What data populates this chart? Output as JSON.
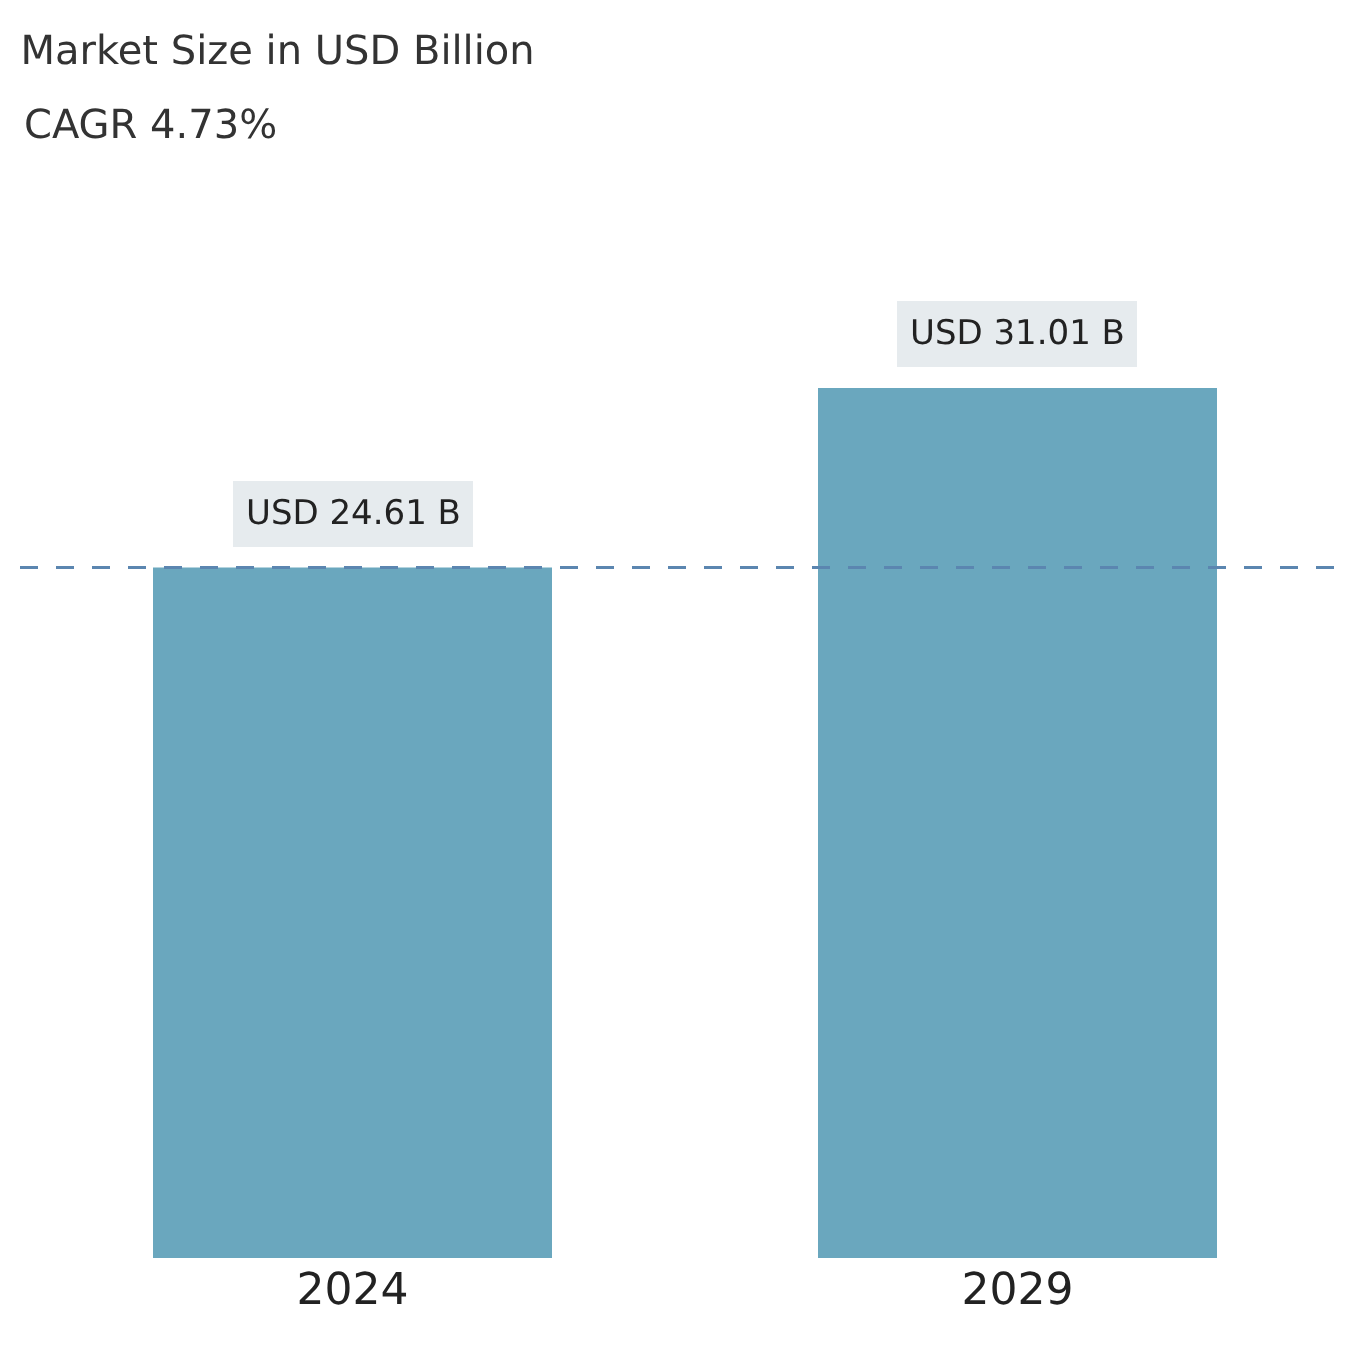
{
  "chart_data": {
    "type": "bar",
    "title": "Market Size in USD Billion",
    "subtitle": "CAGR 4.73%",
    "categories": [
      "2024",
      "2029"
    ],
    "values": [
      24.61,
      31.01
    ],
    "value_labels": [
      "USD 24.61 B",
      "USD 31.01 B"
    ],
    "color": "#6aa7be",
    "ref_lines": [
      {
        "axis": "y",
        "value": 24.61,
        "color": "#5b86b0",
        "line_style": "dashed"
      }
    ],
    "tick_labels": "x",
    "grid": false
  }
}
